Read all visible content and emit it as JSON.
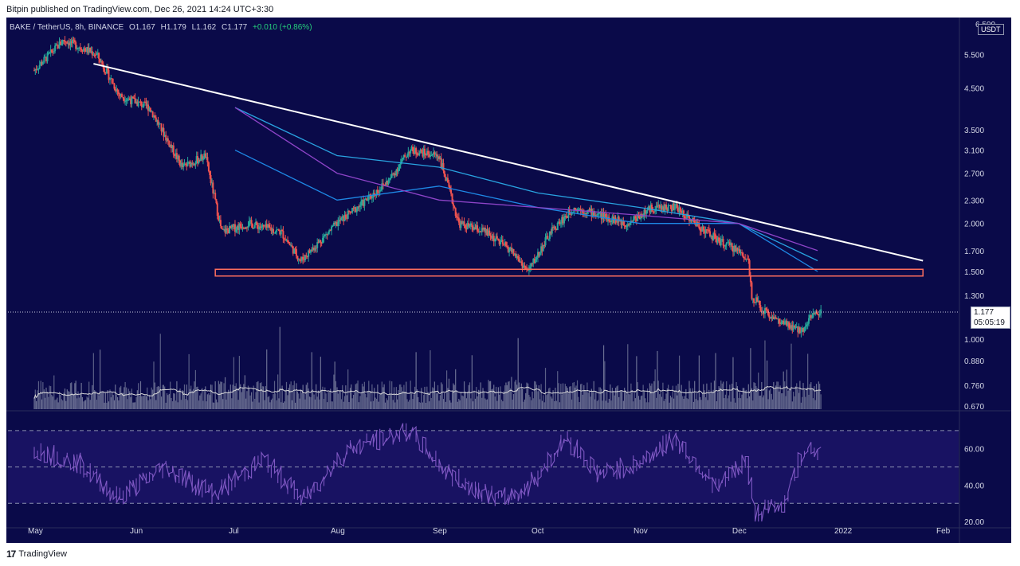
{
  "header": {
    "published": "Bitpin published on TradingView.com, Dec 26, 2021 14:24 UTC+3:30"
  },
  "legend": {
    "symbol": "BAKE / TetherUS, 8h, BINANCE",
    "open": "O1.167",
    "high": "H1.179",
    "low": "L1.162",
    "close": "C1.177",
    "change": "+0.010 (+0.86%)"
  },
  "price_axis": {
    "unit": "USDT",
    "top_label": "6.500",
    "current_price": "1.177",
    "countdown": "05:05:19"
  },
  "footer": {
    "brand": "TradingView",
    "logo": "tv-logo-icon"
  },
  "colors": {
    "background": "#0a0a49",
    "up": "#26a69a",
    "down": "#ef5350",
    "trendline": "#ffffff",
    "support_zone": "#ff6f5e",
    "ma_fast": "#1e88e5",
    "ma_mid": "#29a3e0",
    "ma_slow": "#8e44c8",
    "rsi": "#7e57c2",
    "volume_ma": "#d8d8d8"
  },
  "chart_data": [
    {
      "type": "candlestick",
      "title": "BAKE / TetherUS, 8h, BINANCE",
      "scale": "log",
      "y_ticks": [
        5.5,
        4.5,
        3.5,
        3.1,
        2.7,
        2.3,
        2.0,
        1.7,
        1.5,
        1.3,
        1.0,
        0.88,
        0.76,
        0.67
      ],
      "y_tick_labels": [
        "5.500",
        "4.500",
        "3.500",
        "3.100",
        "2.700",
        "2.300",
        "2.000",
        "1.700",
        "1.500",
        "1.300",
        "1.000",
        "0.880",
        "0.760",
        "0.670"
      ],
      "x_ticks": [
        "May",
        "Jun",
        "Jul",
        "Aug",
        "Sep",
        "Oct",
        "Nov",
        "Dec",
        "2022",
        "Feb"
      ],
      "series": [
        {
          "name": "price_close",
          "x": [
            "2021-05-01",
            "2021-05-10",
            "2021-05-20",
            "2021-05-27",
            "2021-06-05",
            "2021-06-15",
            "2021-06-22",
            "2021-06-27",
            "2021-07-05",
            "2021-07-15",
            "2021-07-21",
            "2021-08-01",
            "2021-08-10",
            "2021-08-17",
            "2021-08-23",
            "2021-09-01",
            "2021-09-07",
            "2021-09-15",
            "2021-09-23",
            "2021-09-28",
            "2021-10-05",
            "2021-10-12",
            "2021-10-20",
            "2021-10-28",
            "2021-11-05",
            "2021-11-12",
            "2021-11-18",
            "2021-11-25",
            "2021-12-01",
            "2021-12-04",
            "2021-12-05",
            "2021-12-08",
            "2021-12-14",
            "2021-12-20",
            "2021-12-23",
            "2021-12-26"
          ],
          "y": [
            5.0,
            6.0,
            5.5,
            4.3,
            4.0,
            2.8,
            3.0,
            1.9,
            2.0,
            1.9,
            1.6,
            2.0,
            2.3,
            2.6,
            3.1,
            3.0,
            2.0,
            1.9,
            1.7,
            1.5,
            1.9,
            2.2,
            2.1,
            2.0,
            2.2,
            2.2,
            2.0,
            1.8,
            1.7,
            1.6,
            1.3,
            1.2,
            1.1,
            1.05,
            1.15,
            1.177
          ]
        }
      ],
      "trendline": {
        "start": [
          "2021-05-19",
          5.2
        ],
        "end": [
          "2022-01-26",
          1.6
        ]
      },
      "support_zone": [
        1.46,
        1.52
      ],
      "moving_averages": [
        {
          "name": "ma_fast",
          "x": [
            "2021-07-01",
            "2021-08-01",
            "2021-09-01",
            "2021-10-01",
            "2021-11-01",
            "2021-12-01",
            "2021-12-25"
          ],
          "y": [
            3.1,
            2.3,
            2.5,
            2.2,
            2.0,
            2.0,
            1.5
          ]
        },
        {
          "name": "ma_mid",
          "x": [
            "2021-07-01",
            "2021-08-01",
            "2021-09-01",
            "2021-10-01",
            "2021-11-01",
            "2021-12-01",
            "2021-12-25"
          ],
          "y": [
            4.0,
            3.0,
            2.8,
            2.4,
            2.2,
            2.0,
            1.6
          ]
        },
        {
          "name": "ma_slow",
          "x": [
            "2021-07-01",
            "2021-08-01",
            "2021-09-01",
            "2021-10-01",
            "2021-11-01",
            "2021-12-01",
            "2021-12-25"
          ],
          "y": [
            4.0,
            2.7,
            2.3,
            2.2,
            2.1,
            2.0,
            1.7
          ]
        }
      ]
    },
    {
      "type": "line",
      "title": "RSI",
      "y_ticks": [
        60,
        40,
        20
      ],
      "y_tick_labels": [
        "60.00",
        "40.00",
        "20.00"
      ],
      "bands": [
        70,
        50,
        30
      ],
      "x": [
        "2021-05-01",
        "2021-05-15",
        "2021-05-27",
        "2021-06-10",
        "2021-06-25",
        "2021-07-10",
        "2021-07-22",
        "2021-08-05",
        "2021-08-23",
        "2021-09-05",
        "2021-09-20",
        "2021-09-28",
        "2021-10-10",
        "2021-10-20",
        "2021-11-01",
        "2021-11-12",
        "2021-11-25",
        "2021-12-04",
        "2021-12-06",
        "2021-12-15",
        "2021-12-22",
        "2021-12-26"
      ],
      "y": [
        60,
        52,
        33,
        50,
        35,
        54,
        32,
        60,
        70,
        45,
        32,
        38,
        66,
        46,
        52,
        66,
        38,
        55,
        24,
        30,
        63,
        57
      ]
    }
  ]
}
